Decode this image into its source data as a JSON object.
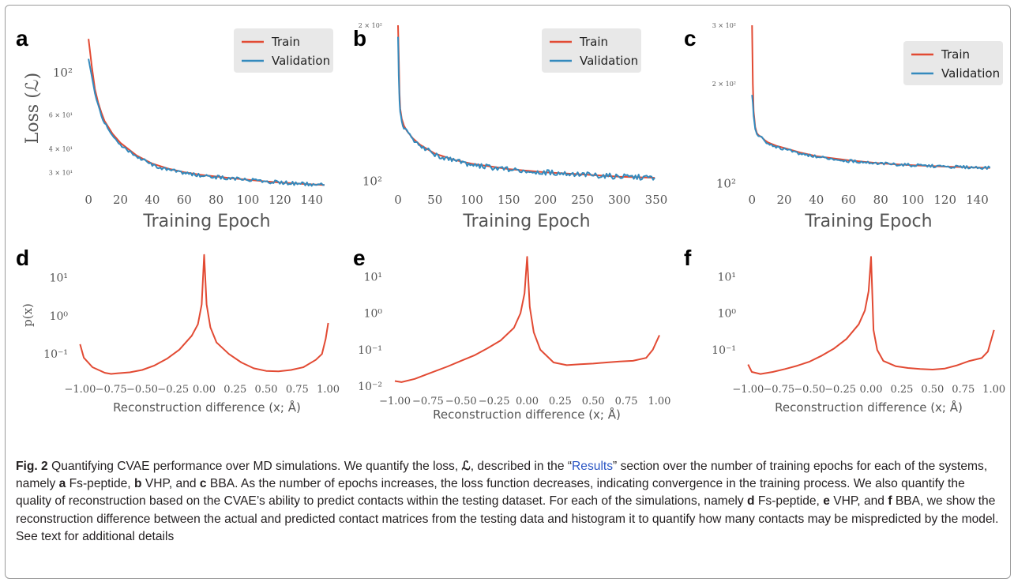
{
  "chart_data": [
    {
      "panel": "a",
      "type": "line",
      "y_scale": "log",
      "xlabel": "Training Epoch",
      "ylabel": "Loss (ℒ)",
      "xlim": [
        -7,
        155
      ],
      "ylim": [
        25,
        170
      ],
      "xticks": [
        0,
        20,
        40,
        60,
        80,
        100,
        120,
        140
      ],
      "yticks": [
        {
          "v": 100,
          "label": "10²",
          "size": 15
        },
        {
          "v": 60,
          "label": "6 × 10¹",
          "size": 8
        },
        {
          "v": 40,
          "label": "4 × 10¹",
          "size": 8
        },
        {
          "v": 30,
          "label": "3 × 10¹",
          "size": 8
        }
      ],
      "legend": [
        "Train",
        "Validation"
      ],
      "legend_position": "top-right",
      "series": [
        {
          "name": "Train",
          "color": "#e24a33",
          "x": [
            0,
            2,
            4,
            6,
            8,
            10,
            15,
            20,
            30,
            40,
            50,
            60,
            70,
            80,
            90,
            100,
            110,
            120,
            130,
            140,
            148
          ],
          "y": [
            150,
            108,
            82,
            70,
            62,
            56,
            48,
            43,
            37,
            33.5,
            31.5,
            30.2,
            29.3,
            28.7,
            28.1,
            27.6,
            27.1,
            26.7,
            26.4,
            26.1,
            25.9
          ]
        },
        {
          "name": "Validation",
          "color": "#348abd",
          "x": [
            0,
            2,
            4,
            6,
            8,
            10,
            15,
            20,
            30,
            40,
            50,
            60,
            70,
            80,
            90,
            100,
            110,
            120,
            130,
            140,
            148
          ],
          "y": [
            118,
            96,
            78,
            68,
            60,
            55,
            46,
            42,
            36.5,
            33,
            31,
            30,
            29,
            28.5,
            28,
            27.5,
            27.1,
            26.7,
            26.4,
            26.1,
            25.9
          ],
          "noise": 0.022
        }
      ]
    },
    {
      "panel": "b",
      "type": "line",
      "y_scale": "log",
      "xlabel": "Training Epoch",
      "ylabel": "",
      "xlim": [
        -15,
        365
      ],
      "ylim": [
        97,
        200
      ],
      "xticks": [
        0,
        50,
        100,
        150,
        200,
        250,
        300,
        350
      ],
      "yticks": [
        {
          "v": 100,
          "label": "10²",
          "size": 15
        },
        {
          "v": 200,
          "label": "2 × 10²",
          "size": 8
        }
      ],
      "legend": [
        "Train",
        "Validation"
      ],
      "legend_position": "top-right",
      "series": [
        {
          "name": "Train",
          "color": "#e24a33",
          "x": [
            0,
            1,
            2,
            3,
            5,
            8,
            12,
            20,
            30,
            50,
            75,
            100,
            150,
            200,
            250,
            300,
            348
          ],
          "y": [
            200,
            175,
            148,
            138,
            132,
            128,
            125,
            121,
            117.5,
            113,
            110,
            108,
            105.5,
            104,
            103,
            102,
            101.5
          ]
        },
        {
          "name": "Validation",
          "color": "#348abd",
          "x": [
            0,
            1,
            2,
            3,
            5,
            8,
            12,
            20,
            30,
            50,
            75,
            100,
            150,
            200,
            250,
            300,
            348
          ],
          "y": [
            190,
            160,
            143,
            136,
            131,
            127,
            124,
            120.5,
            117,
            112.5,
            109.5,
            107.5,
            105.2,
            104,
            103,
            102,
            101.5
          ],
          "noise": 0.012
        }
      ]
    },
    {
      "panel": "c",
      "type": "line",
      "y_scale": "log",
      "xlabel": "Training Epoch",
      "ylabel": "",
      "xlim": [
        -7,
        155
      ],
      "ylim": [
        97,
        300
      ],
      "xticks": [
        0,
        20,
        40,
        60,
        80,
        100,
        120,
        140
      ],
      "yticks": [
        {
          "v": 100,
          "label": "10²",
          "size": 15
        },
        {
          "v": 200,
          "label": "2 × 10²",
          "size": 8
        },
        {
          "v": 300,
          "label": "3 × 10²",
          "size": 8
        }
      ],
      "legend": [
        "Train",
        "Validation"
      ],
      "legend_position": "top-right",
      "series": [
        {
          "name": "Train",
          "color": "#e24a33",
          "x": [
            0,
            0.5,
            1,
            2,
            3,
            4,
            6,
            8,
            10,
            15,
            20,
            30,
            40,
            60,
            80,
            100,
            120,
            148
          ],
          "y": [
            300,
            200,
            165,
            148,
            142,
            140,
            138,
            135,
            133,
            130,
            128,
            124,
            121,
            117.5,
            115,
            113.5,
            112.5,
            111.5
          ]
        },
        {
          "name": "Validation",
          "color": "#348abd",
          "x": [
            0,
            0.5,
            1,
            2,
            3,
            4,
            6,
            8,
            10,
            15,
            20,
            30,
            40,
            60,
            80,
            100,
            120,
            148
          ],
          "y": [
            185,
            175,
            160,
            146,
            141,
            139,
            137,
            134,
            132,
            129,
            127,
            123,
            120.5,
            117,
            115,
            113.5,
            112.5,
            111.5
          ],
          "noise": 0.01
        }
      ]
    },
    {
      "panel": "d",
      "type": "line",
      "y_scale": "log",
      "xlabel": "Reconstruction difference (x; Å)",
      "ylabel": "p(x)",
      "xlim": [
        -1.06,
        1.06
      ],
      "ylim": [
        0.022,
        50
      ],
      "xticks": [
        -1.0,
        -0.75,
        -0.5,
        -0.25,
        0.0,
        0.25,
        0.5,
        0.75,
        1.0
      ],
      "xtick_labels": [
        "−1.00",
        "−0.75",
        "−0.50",
        "−0.25",
        "0.00",
        "0.25",
        "0.50",
        "0.75",
        "1.00"
      ],
      "yticks": [
        {
          "v": 10,
          "label": "10¹",
          "size": 14
        },
        {
          "v": 1,
          "label": "10⁰",
          "size": 14
        },
        {
          "v": 0.1,
          "label": "10⁻¹",
          "size": 14
        }
      ],
      "series": [
        {
          "name": "",
          "color": "#e24a33",
          "x": [
            -1.0,
            -0.97,
            -0.9,
            -0.8,
            -0.75,
            -0.7,
            -0.6,
            -0.5,
            -0.4,
            -0.3,
            -0.2,
            -0.1,
            -0.05,
            -0.02,
            0.0,
            0.02,
            0.05,
            0.1,
            0.2,
            0.3,
            0.4,
            0.5,
            0.6,
            0.7,
            0.8,
            0.9,
            0.95,
            0.98,
            1.0
          ],
          "y": [
            0.18,
            0.08,
            0.045,
            0.032,
            0.03,
            0.031,
            0.033,
            0.038,
            0.05,
            0.075,
            0.13,
            0.3,
            0.6,
            2.0,
            40,
            2.0,
            0.5,
            0.2,
            0.1,
            0.06,
            0.042,
            0.036,
            0.035,
            0.038,
            0.045,
            0.07,
            0.1,
            0.25,
            0.65
          ]
        }
      ]
    },
    {
      "panel": "e",
      "type": "line",
      "y_scale": "log",
      "xlabel": "Reconstruction difference (x; Å)",
      "ylabel": "",
      "xlim": [
        -1.06,
        1.06
      ],
      "ylim": [
        0.0075,
        50
      ],
      "xticks": [
        -1.0,
        -0.75,
        -0.5,
        -0.25,
        0.0,
        0.25,
        0.5,
        0.75,
        1.0
      ],
      "xtick_labels": [
        "−1.00",
        "−0.75",
        "−0.50",
        "−0.25",
        "0.00",
        "0.25",
        "0.50",
        "0.75",
        "1.00"
      ],
      "yticks": [
        {
          "v": 10,
          "label": "10¹",
          "size": 14
        },
        {
          "v": 1,
          "label": "10⁰",
          "size": 14
        },
        {
          "v": 0.1,
          "label": "10⁻¹",
          "size": 14
        },
        {
          "v": 0.01,
          "label": "10⁻²",
          "size": 14
        }
      ],
      "series": [
        {
          "name": "",
          "color": "#e24a33",
          "x": [
            -1.0,
            -0.95,
            -0.85,
            -0.75,
            -0.6,
            -0.5,
            -0.4,
            -0.3,
            -0.2,
            -0.1,
            -0.05,
            -0.02,
            0.0,
            0.02,
            0.05,
            0.1,
            0.2,
            0.3,
            0.4,
            0.5,
            0.6,
            0.7,
            0.8,
            0.9,
            0.95,
            1.0
          ],
          "y": [
            0.014,
            0.013,
            0.016,
            0.022,
            0.035,
            0.05,
            0.07,
            0.11,
            0.18,
            0.4,
            1.0,
            3.5,
            35,
            1.5,
            0.3,
            0.1,
            0.045,
            0.038,
            0.04,
            0.042,
            0.045,
            0.048,
            0.05,
            0.06,
            0.1,
            0.25
          ]
        }
      ]
    },
    {
      "panel": "f",
      "type": "line",
      "y_scale": "log",
      "xlabel": "Reconstruction difference (x; Å)",
      "ylabel": "",
      "xlim": [
        -1.06,
        1.06
      ],
      "ylim": [
        0.016,
        50
      ],
      "xticks": [
        -1.0,
        -0.75,
        -0.5,
        -0.25,
        0.0,
        0.25,
        0.5,
        0.75,
        1.0
      ],
      "xtick_labels": [
        "−1.00",
        "−0.75",
        "−0.50",
        "−0.25",
        "0.00",
        "0.25",
        "0.50",
        "0.75",
        "1.00"
      ],
      "yticks": [
        {
          "v": 10,
          "label": "10¹",
          "size": 14
        },
        {
          "v": 1,
          "label": "10⁰",
          "size": 14
        },
        {
          "v": 0.1,
          "label": "10⁻¹",
          "size": 14
        }
      ],
      "series": [
        {
          "name": "",
          "color": "#e24a33",
          "x": [
            -1.0,
            -0.97,
            -0.9,
            -0.8,
            -0.7,
            -0.6,
            -0.5,
            -0.4,
            -0.3,
            -0.2,
            -0.1,
            -0.05,
            -0.02,
            0.0,
            0.02,
            0.05,
            0.1,
            0.2,
            0.3,
            0.4,
            0.5,
            0.6,
            0.7,
            0.8,
            0.9,
            0.95,
            1.0
          ],
          "y": [
            0.04,
            0.025,
            0.022,
            0.025,
            0.03,
            0.037,
            0.048,
            0.07,
            0.11,
            0.2,
            0.5,
            1.2,
            4.0,
            35,
            0.35,
            0.1,
            0.05,
            0.036,
            0.032,
            0.03,
            0.029,
            0.031,
            0.038,
            0.05,
            0.06,
            0.09,
            0.35
          ]
        }
      ]
    }
  ],
  "caption": {
    "label": "Fig. 2",
    "p1": " Quantifying CVAE performance over MD simulations. We quantify the loss, ",
    "loss_symbol": "ℒ",
    "p2": ", described in the “",
    "link": "Results",
    "p3": "” section over the number of training epochs for each of the systems, namely ",
    "a": "a",
    "a_t": " Fs-peptide, ",
    "b": "b",
    "b_t": " VHP, and ",
    "c": "c",
    "c_t": " BBA. As the number of epochs increases, the loss function decreases, indicating convergence in the training process. We also quantify the quality of reconstruction based on the CVAE’s ability to predict contacts within the testing dataset. For each of the simulations, namely ",
    "d": "d",
    "d_t": " Fs-peptide, ",
    "e": "e",
    "e_t": " VHP, and ",
    "f": "f",
    "f_t": " BBA, we show the reconstruction difference between the actual and predicted contact matrices from the testing data and histogram it to quantify how many contacts may be mispredicted by the model. See text for additional details"
  }
}
